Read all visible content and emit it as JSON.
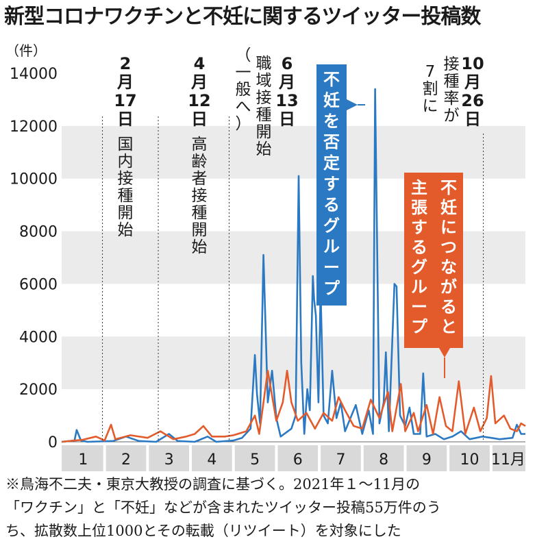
{
  "title": "新型コロナワクチンと不妊に関するツイッター投稿数",
  "unit": "（件）",
  "colors": {
    "blue": "#2a79c2",
    "orange": "#e35a2b",
    "band": "#ebebeb",
    "month_bar": "#d9d9d9"
  },
  "chart_data": {
    "type": "line",
    "title": "新型コロナワクチンと不妊に関するツイッター投稿数",
    "ylabel": "（件）",
    "ylim": [
      0,
      14000
    ],
    "yticks": [
      0,
      2000,
      4000,
      6000,
      8000,
      10000,
      12000,
      14000
    ],
    "xlim": [
      0,
      10.8
    ],
    "months": [
      "1",
      "2",
      "3",
      "4",
      "5",
      "6",
      "7",
      "8",
      "9",
      "10",
      "11月"
    ],
    "series": [
      {
        "name": "不妊を否定するグループ",
        "color": "#2a79c2",
        "points": [
          [
            0,
            0
          ],
          [
            0.3,
            50
          ],
          [
            0.35,
            450
          ],
          [
            0.45,
            50
          ],
          [
            0.6,
            0
          ],
          [
            1.2,
            30
          ],
          [
            1.5,
            200
          ],
          [
            1.8,
            30
          ],
          [
            2.2,
            0
          ],
          [
            2.5,
            300
          ],
          [
            2.7,
            30
          ],
          [
            3.1,
            0
          ],
          [
            3.4,
            200
          ],
          [
            3.6,
            0
          ],
          [
            4.0,
            50
          ],
          [
            4.2,
            150
          ],
          [
            4.4,
            500
          ],
          [
            4.5,
            3300
          ],
          [
            4.55,
            1800
          ],
          [
            4.62,
            700
          ],
          [
            4.7,
            7100
          ],
          [
            4.8,
            1500
          ],
          [
            4.9,
            2700
          ],
          [
            5.0,
            900
          ],
          [
            5.1,
            200
          ],
          [
            5.35,
            500
          ],
          [
            5.45,
            1000
          ],
          [
            5.52,
            10100
          ],
          [
            5.58,
            3000
          ],
          [
            5.65,
            300
          ],
          [
            5.72,
            2000
          ],
          [
            5.78,
            1200
          ],
          [
            5.85,
            6300
          ],
          [
            5.88,
            5400
          ],
          [
            5.92,
            4800
          ],
          [
            5.98,
            1500
          ],
          [
            6.03,
            5800
          ],
          [
            6.1,
            1000
          ],
          [
            6.2,
            700
          ],
          [
            6.3,
            2700
          ],
          [
            6.4,
            900
          ],
          [
            6.5,
            1500
          ],
          [
            6.6,
            400
          ],
          [
            6.75,
            1000
          ],
          [
            6.85,
            1400
          ],
          [
            7.0,
            300
          ],
          [
            7.15,
            1200
          ],
          [
            7.25,
            300
          ],
          [
            7.3,
            13400
          ],
          [
            7.4,
            700
          ],
          [
            7.5,
            1500
          ],
          [
            7.55,
            3400
          ],
          [
            7.62,
            400
          ],
          [
            7.75,
            6000
          ],
          [
            7.8,
            5900
          ],
          [
            7.88,
            1000
          ],
          [
            8.0,
            600
          ],
          [
            8.1,
            1300
          ],
          [
            8.2,
            300
          ],
          [
            8.35,
            300
          ],
          [
            8.42,
            2600
          ],
          [
            8.5,
            200
          ],
          [
            8.7,
            300
          ],
          [
            8.9,
            100
          ],
          [
            9.1,
            200
          ],
          [
            9.3,
            400
          ],
          [
            9.5,
            100
          ],
          [
            9.8,
            200
          ],
          [
            10.0,
            150
          ],
          [
            10.2,
            100
          ],
          [
            10.5,
            150
          ],
          [
            10.6,
            650
          ],
          [
            10.7,
            300
          ],
          [
            10.8,
            300
          ]
        ]
      },
      {
        "name": "不妊につながると主張するグループ",
        "color": "#e35a2b",
        "points": [
          [
            0,
            0
          ],
          [
            0.5,
            80
          ],
          [
            0.8,
            200
          ],
          [
            1.0,
            50
          ],
          [
            1.15,
            650
          ],
          [
            1.25,
            100
          ],
          [
            1.6,
            250
          ],
          [
            2.0,
            150
          ],
          [
            2.3,
            400
          ],
          [
            2.6,
            100
          ],
          [
            2.9,
            200
          ],
          [
            3.1,
            300
          ],
          [
            3.3,
            600
          ],
          [
            3.5,
            200
          ],
          [
            3.8,
            200
          ],
          [
            4.0,
            250
          ],
          [
            4.3,
            400
          ],
          [
            4.5,
            1000
          ],
          [
            4.6,
            300
          ],
          [
            4.8,
            2700
          ],
          [
            5.0,
            800
          ],
          [
            5.15,
            1500
          ],
          [
            5.25,
            2700
          ],
          [
            5.35,
            1500
          ],
          [
            5.5,
            800
          ],
          [
            5.7,
            1100
          ],
          [
            5.9,
            500
          ],
          [
            6.1,
            1100
          ],
          [
            6.3,
            800
          ],
          [
            6.45,
            1700
          ],
          [
            6.6,
            1200
          ],
          [
            6.8,
            600
          ],
          [
            7.0,
            500
          ],
          [
            7.2,
            1600
          ],
          [
            7.4,
            900
          ],
          [
            7.6,
            1900
          ],
          [
            7.7,
            400
          ],
          [
            7.9,
            2200
          ],
          [
            8.0,
            400
          ],
          [
            8.2,
            1100
          ],
          [
            8.3,
            400
          ],
          [
            8.5,
            1400
          ],
          [
            8.65,
            300
          ],
          [
            8.8,
            1700
          ],
          [
            8.95,
            600
          ],
          [
            9.1,
            400
          ],
          [
            9.25,
            2300
          ],
          [
            9.4,
            300
          ],
          [
            9.6,
            1300
          ],
          [
            9.75,
            400
          ],
          [
            9.9,
            900
          ],
          [
            10.0,
            2500
          ],
          [
            10.1,
            700
          ],
          [
            10.3,
            1000
          ],
          [
            10.45,
            500
          ],
          [
            10.6,
            400
          ],
          [
            10.7,
            700
          ],
          [
            10.8,
            600
          ]
        ]
      }
    ],
    "events": [
      {
        "x": 0.95,
        "date": [
          "2",
          "月",
          "17",
          "日"
        ],
        "text": [
          "国",
          "内",
          "接",
          "種",
          "開",
          "始"
        ]
      },
      {
        "x": 2.25,
        "date": [
          "4",
          "月",
          "12",
          "日"
        ],
        "text": [
          "高",
          "齢",
          "者",
          "接",
          "種",
          "開",
          "始"
        ]
      },
      {
        "x": 3.9,
        "date": [
          "6",
          "月",
          "13",
          "日"
        ],
        "text": [
          "職",
          "域",
          "接",
          "種",
          "開",
          "始"
        ],
        "paren": [
          "（",
          "一",
          "般",
          "へ",
          "）"
        ]
      },
      {
        "x": 9.82,
        "date": [
          "10",
          "月",
          "26",
          "日"
        ],
        "text": [
          "接",
          "種",
          "率",
          "が"
        ],
        "text2": [
          "7",
          "割",
          "に"
        ]
      }
    ],
    "legend_labels": {
      "blue": [
        "不",
        "妊",
        "を",
        "否",
        "定",
        "す",
        "る",
        "グ",
        "ル",
        "ー",
        "プ"
      ],
      "orange1": [
        "不",
        "妊",
        "に",
        "つ",
        "な",
        "が",
        "る",
        "と"
      ],
      "orange2": [
        "主",
        "張",
        "す",
        "る",
        "グ",
        "ル",
        "ー",
        "プ"
      ]
    }
  },
  "note": [
    "※鳥海不二夫・東京大教授の調査に基づく。2021年１～11月の",
    "「ワクチン」と「不妊」などが含まれたツイッター投稿55万件のう",
    "ち、拡散数上位1000とその転載（リツイート）を対象にした"
  ]
}
